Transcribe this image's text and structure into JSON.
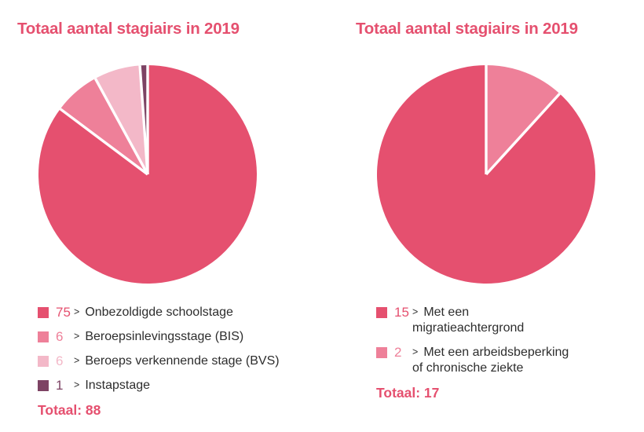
{
  "page": {
    "background": "#ffffff",
    "accent_color": "#e5506f",
    "text_color": "#2d2d2d"
  },
  "chart_data": [
    {
      "type": "pie",
      "title": "Totaal aantal stagiairs in 2019",
      "title_color": "#e5506f",
      "direction": "clockwise",
      "start_angle_deg": 0,
      "legend_position": "bottom-left",
      "bullet": ">",
      "divider_color": "#ffffff",
      "total": 88,
      "total_text": "Totaal: 88",
      "slices": [
        {
          "value": 75,
          "label": "Onbezoldigde schoolstage",
          "color": "#e5506f"
        },
        {
          "value": 6,
          "label": "Beroepsinlevingsstage (BIS)",
          "color": "#ee8099"
        },
        {
          "value": 6,
          "label": "Beroeps verkennende stage (BVS)",
          "color": "#f3b8c8"
        },
        {
          "value": 1,
          "label": "Instapstage",
          "color": "#7d4364"
        }
      ]
    },
    {
      "type": "pie",
      "title": "Totaal aantal stagiairs in 2019",
      "title_color": "#e5506f",
      "direction": "counterclockwise",
      "start_angle_deg": 0,
      "legend_position": "bottom-left",
      "bullet": ">",
      "divider_color": "#ffffff",
      "total": 17,
      "total_text": "Totaal: 17",
      "slices": [
        {
          "value": 15,
          "label": "Met een migratieachtergrond",
          "color": "#e5506f"
        },
        {
          "value": 2,
          "label": "Met een arbeidsbeperking of chronische ziekte",
          "color": "#ee8099"
        }
      ]
    }
  ]
}
